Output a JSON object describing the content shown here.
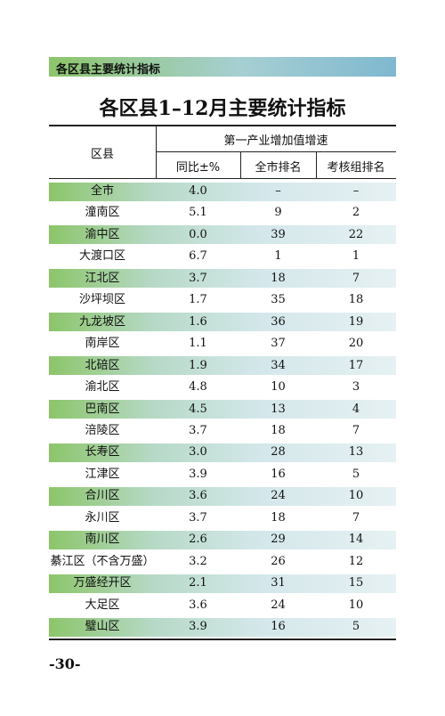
{
  "header": {
    "title": "各区县主要统计指标"
  },
  "table": {
    "title": "各区县1–12月主要统计指标",
    "columns": {
      "region": "区县",
      "group": "第一产业增加值增速",
      "sub": [
        "同比±%",
        "全市排名",
        "考核组排名"
      ]
    },
    "rows": [
      [
        "全市",
        "4.0",
        "–",
        "–"
      ],
      [
        "潼南区",
        "5.1",
        "9",
        "2"
      ],
      [
        "渝中区",
        "0.0",
        "39",
        "22"
      ],
      [
        "大渡口区",
        "6.7",
        "1",
        "1"
      ],
      [
        "江北区",
        "3.7",
        "18",
        "7"
      ],
      [
        "沙坪坝区",
        "1.7",
        "35",
        "18"
      ],
      [
        "九龙坡区",
        "1.6",
        "36",
        "19"
      ],
      [
        "南岸区",
        "1.1",
        "37",
        "20"
      ],
      [
        "北碚区",
        "1.9",
        "34",
        "17"
      ],
      [
        "渝北区",
        "4.8",
        "10",
        "3"
      ],
      [
        "巴南区",
        "4.5",
        "13",
        "4"
      ],
      [
        "涪陵区",
        "3.7",
        "18",
        "7"
      ],
      [
        "长寿区",
        "3.0",
        "28",
        "13"
      ],
      [
        "江津区",
        "3.9",
        "16",
        "5"
      ],
      [
        "合川区",
        "3.6",
        "24",
        "10"
      ],
      [
        "永川区",
        "3.7",
        "18",
        "7"
      ],
      [
        "南川区",
        "2.6",
        "29",
        "14"
      ],
      [
        "綦江区（不含万盛）",
        "3.2",
        "26",
        "12"
      ],
      [
        "万盛经开区",
        "2.1",
        "31",
        "15"
      ],
      [
        "大足区",
        "3.6",
        "24",
        "10"
      ],
      [
        "璧山区",
        "3.9",
        "16",
        "5"
      ]
    ]
  },
  "footer": {
    "page": "-30-"
  }
}
